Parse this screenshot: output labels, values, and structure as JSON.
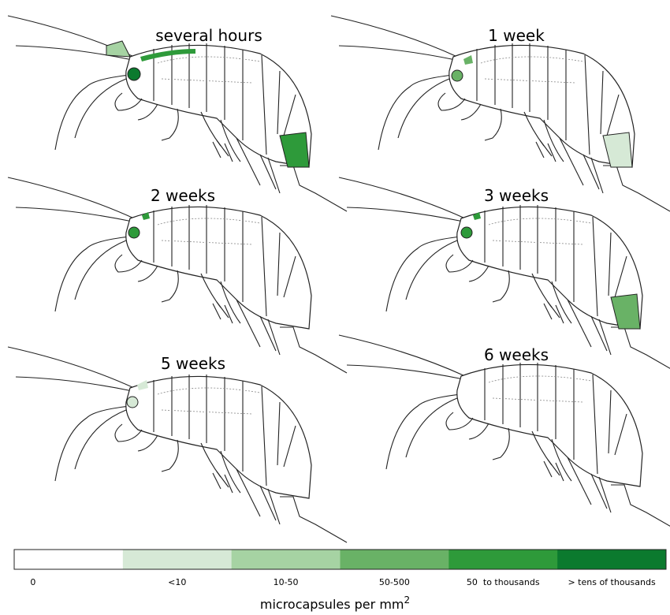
{
  "panels": [
    {
      "title": "several hours"
    },
    {
      "title": "1 week"
    },
    {
      "title": "2 weeks"
    },
    {
      "title": "3 weeks"
    },
    {
      "title": "5 weeks"
    },
    {
      "title": "6 weeks"
    }
  ],
  "legend": {
    "items": [
      {
        "label": "0",
        "color": "#ffffff"
      },
      {
        "label": "<10",
        "color": "#d6e9d6"
      },
      {
        "label": "10-50",
        "color": "#a6d3a3"
      },
      {
        "label": "50-500",
        "color": "#69b266"
      },
      {
        "label": "50  to thousands",
        "color": "#2e9a3a"
      },
      {
        "label": "> tens of thousands",
        "color": "#0b7a2e"
      }
    ],
    "title": "microcapsules per mm",
    "title_superscript": "2"
  }
}
